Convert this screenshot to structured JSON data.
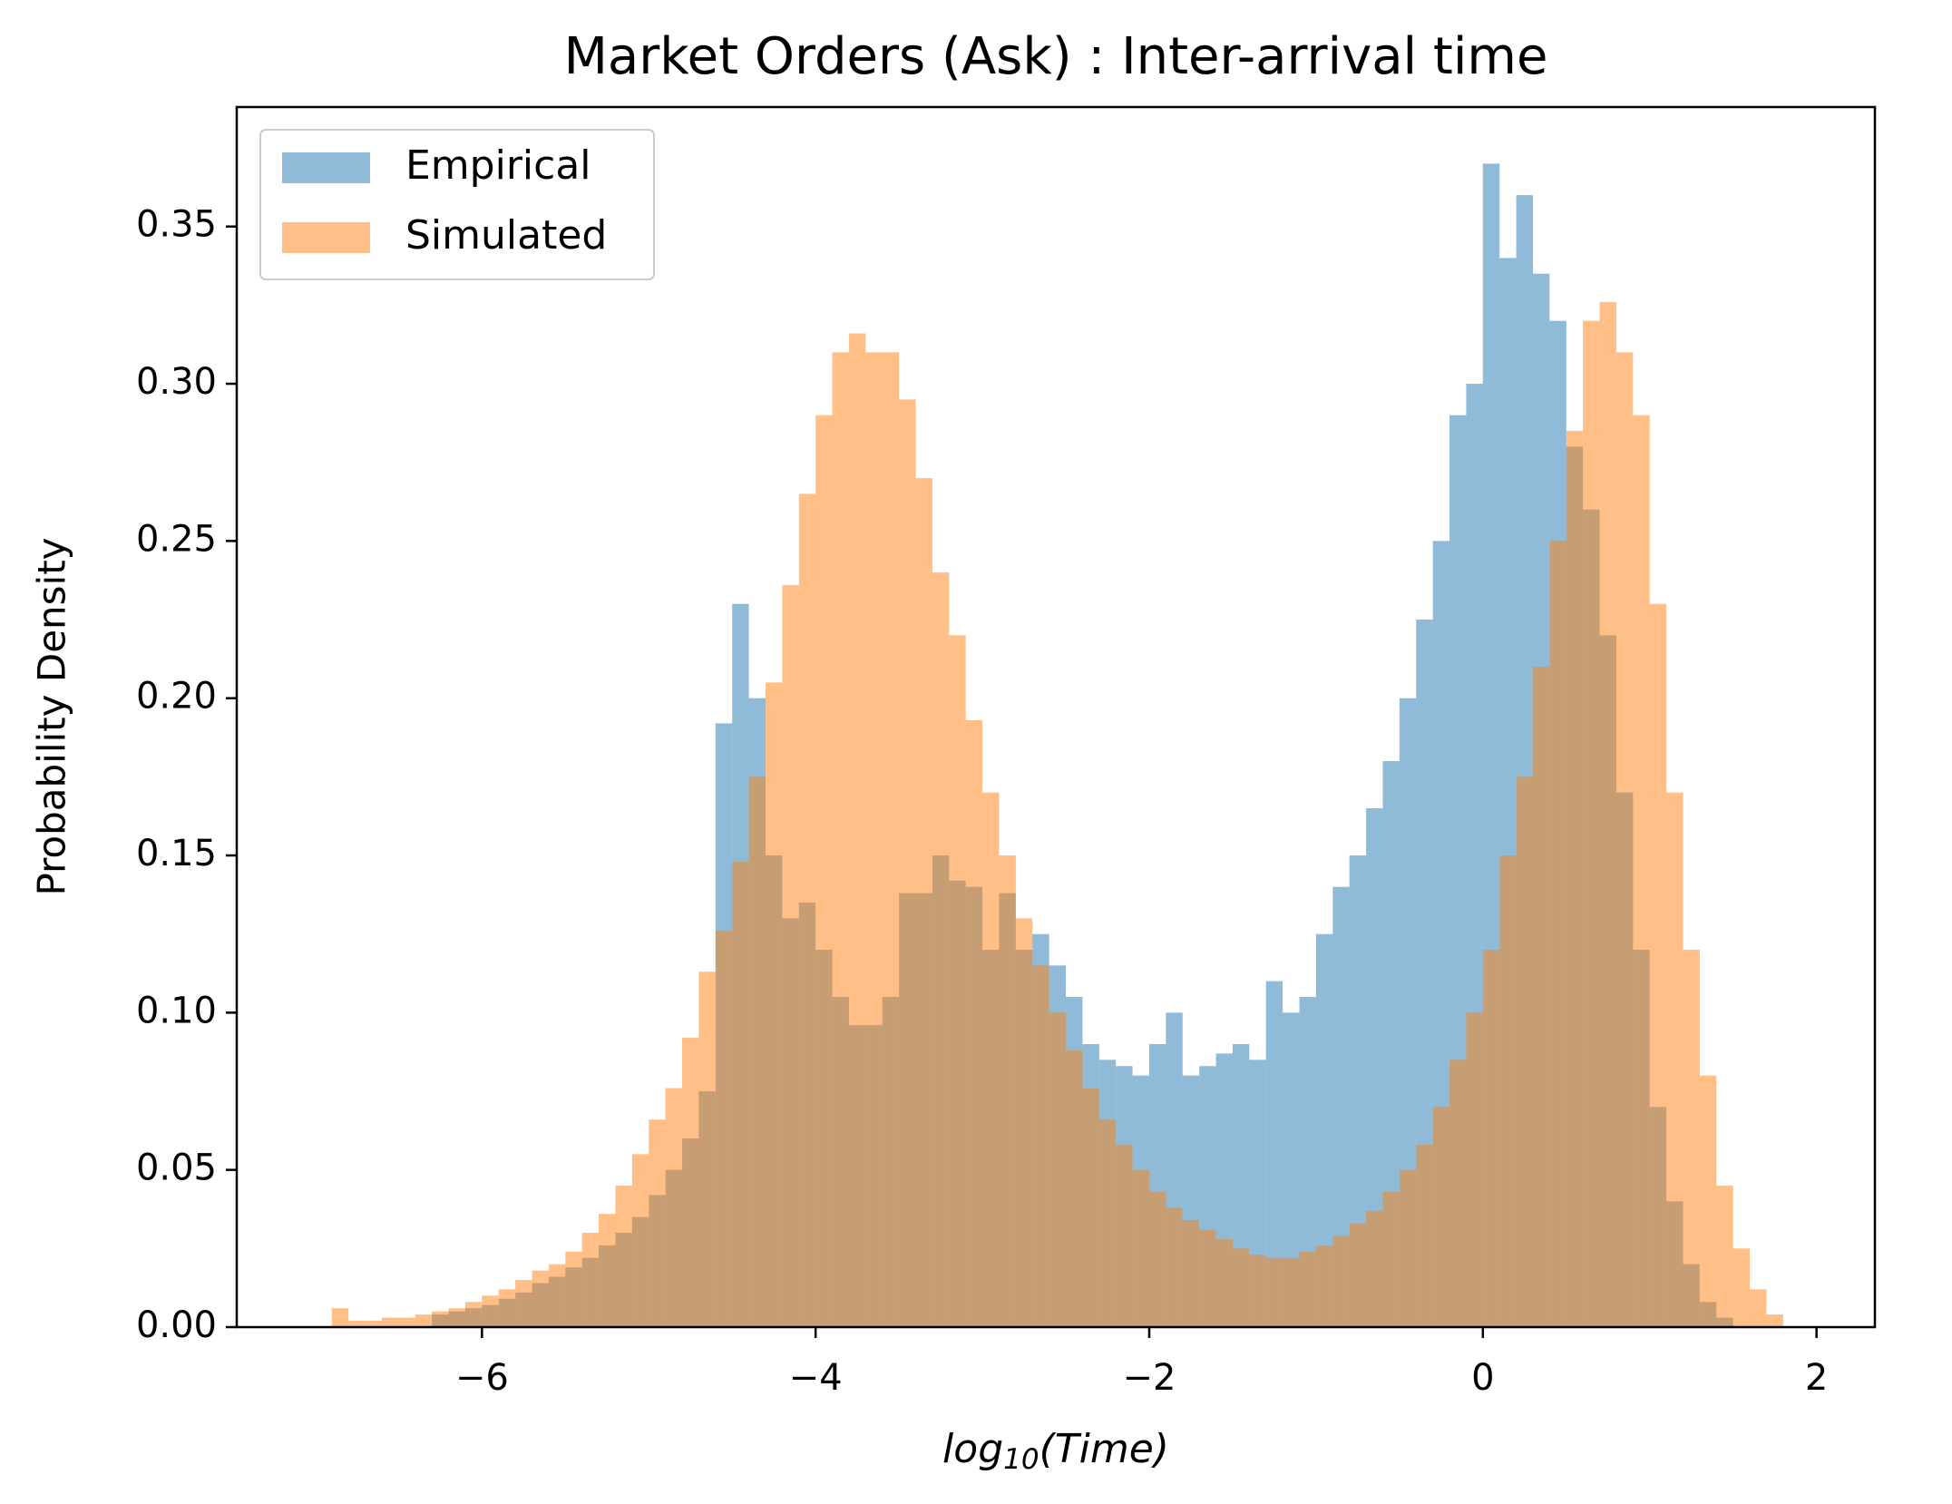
{
  "chart_data": {
    "type": "histogram",
    "title": "Market Orders (Ask) : Inter-arrival time",
    "xlabel": {
      "base": "log",
      "sub": "10",
      "arg": "(Time)"
    },
    "ylabel": "Probability Density",
    "bins": [
      -6.9,
      -6.8,
      -6.7,
      -6.6,
      -6.5,
      -6.4,
      -6.3,
      -6.2,
      -6.1,
      -6.0,
      -5.9,
      -5.8,
      -5.7,
      -5.6,
      -5.5,
      -5.4,
      -5.3,
      -5.2,
      -5.1,
      -5.0,
      -4.9,
      -4.8,
      -4.7,
      -4.6,
      -4.5,
      -4.4,
      -4.3,
      -4.2,
      -4.1,
      -4.0,
      -3.9,
      -3.8,
      -3.7,
      -3.6,
      -3.5,
      -3.4,
      -3.3,
      -3.2,
      -3.1,
      -3.0,
      -2.9,
      -2.8,
      -2.7,
      -2.6,
      -2.5,
      -2.4,
      -2.3,
      -2.2,
      -2.1,
      -2.0,
      -1.9,
      -1.8,
      -1.7,
      -1.6,
      -1.5,
      -1.4,
      -1.3,
      -1.2,
      -1.1,
      -1.0,
      -0.9,
      -0.8,
      -0.7,
      -0.6,
      -0.5,
      -0.4,
      -0.3,
      -0.2,
      -0.1,
      0.0,
      0.1,
      0.2,
      0.3,
      0.4,
      0.5,
      0.6,
      0.7,
      0.8,
      0.9,
      1.0,
      1.1,
      1.2,
      1.3,
      1.4,
      1.5,
      1.6,
      1.7,
      1.8
    ],
    "series": [
      {
        "name": "Empirical",
        "color": "#1f77b4",
        "values": [
          0,
          0,
          0,
          0,
          0,
          0,
          0.004,
          0.005,
          0.006,
          0.007,
          0.009,
          0.011,
          0.014,
          0.016,
          0.019,
          0.022,
          0.026,
          0.03,
          0.035,
          0.042,
          0.05,
          0.06,
          0.075,
          0.192,
          0.23,
          0.2,
          0.15,
          0.13,
          0.135,
          0.12,
          0.105,
          0.096,
          0.096,
          0.105,
          0.138,
          0.138,
          0.15,
          0.142,
          0.14,
          0.12,
          0.138,
          0.12,
          0.125,
          0.115,
          0.105,
          0.09,
          0.085,
          0.083,
          0.08,
          0.09,
          0.1,
          0.08,
          0.083,
          0.087,
          0.09,
          0.085,
          0.11,
          0.1,
          0.105,
          0.125,
          0.14,
          0.15,
          0.165,
          0.18,
          0.2,
          0.225,
          0.25,
          0.29,
          0.3,
          0.37,
          0.34,
          0.36,
          0.335,
          0.32,
          0.28,
          0.26,
          0.22,
          0.17,
          0.12,
          0.07,
          0.04,
          0.02,
          0.008,
          0.003,
          0,
          0,
          0
        ]
      },
      {
        "name": "Simulated",
        "color": "#ff7f0e",
        "values": [
          0.006,
          0.002,
          0.002,
          0.003,
          0.003,
          0.004,
          0.005,
          0.006,
          0.008,
          0.01,
          0.012,
          0.015,
          0.018,
          0.02,
          0.024,
          0.03,
          0.036,
          0.045,
          0.055,
          0.066,
          0.076,
          0.092,
          0.113,
          0.126,
          0.148,
          0.175,
          0.205,
          0.236,
          0.265,
          0.29,
          0.31,
          0.316,
          0.31,
          0.31,
          0.295,
          0.27,
          0.24,
          0.22,
          0.193,
          0.17,
          0.15,
          0.13,
          0.115,
          0.1,
          0.088,
          0.076,
          0.066,
          0.058,
          0.05,
          0.043,
          0.038,
          0.034,
          0.031,
          0.028,
          0.025,
          0.023,
          0.022,
          0.022,
          0.024,
          0.026,
          0.029,
          0.033,
          0.037,
          0.043,
          0.05,
          0.058,
          0.07,
          0.085,
          0.1,
          0.12,
          0.15,
          0.175,
          0.21,
          0.25,
          0.285,
          0.32,
          0.326,
          0.31,
          0.29,
          0.23,
          0.17,
          0.12,
          0.08,
          0.045,
          0.025,
          0.012,
          0.004
        ]
      }
    ],
    "alpha": 0.5,
    "xlim": [
      -7.47,
      2.35
    ],
    "ylim": [
      0,
      0.388
    ],
    "xticks": [
      {
        "value": -6,
        "label": "−6"
      },
      {
        "value": -4,
        "label": "−4"
      },
      {
        "value": -2,
        "label": "−2"
      },
      {
        "value": 0,
        "label": "0"
      },
      {
        "value": 2,
        "label": "2"
      }
    ],
    "yticks": [
      {
        "value": 0,
        "label": "0.00"
      },
      {
        "value": 0.05,
        "label": "0.05"
      },
      {
        "value": 0.1,
        "label": "0.10"
      },
      {
        "value": 0.15,
        "label": "0.15"
      },
      {
        "value": 0.2,
        "label": "0.20"
      },
      {
        "value": 0.25,
        "label": "0.25"
      },
      {
        "value": 0.3,
        "label": "0.30"
      },
      {
        "value": 0.35,
        "label": "0.35"
      }
    ],
    "legend": "upper left",
    "grid": false
  }
}
